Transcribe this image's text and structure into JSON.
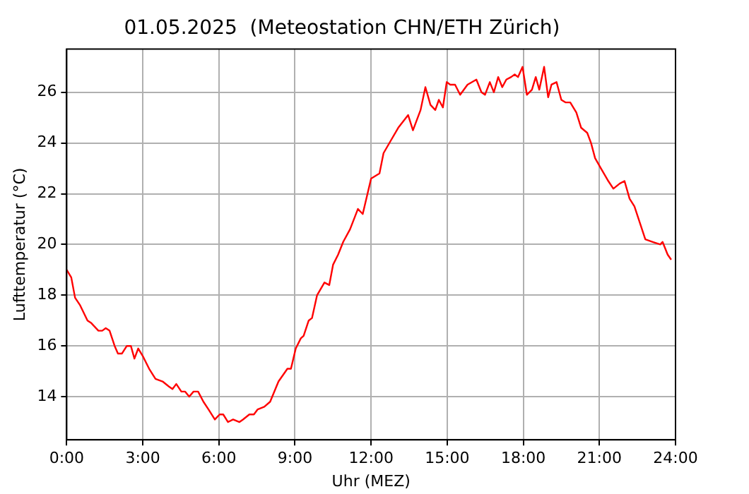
{
  "chart_data": {
    "type": "line",
    "title": "01.05.2025  (Meteostation CHN/ETH Zürich)",
    "xlabel": "Uhr (MEZ)",
    "ylabel": "Lufttemperatur (°C)",
    "x": [
      0.0,
      0.18,
      0.33,
      0.53,
      0.82,
      0.97,
      1.25,
      1.4,
      1.54,
      1.69,
      1.89,
      2.02,
      2.18,
      2.37,
      2.53,
      2.67,
      2.82,
      3.0,
      3.25,
      3.5,
      3.78,
      4.03,
      4.17,
      4.32,
      4.52,
      4.67,
      4.83,
      5.0,
      5.18,
      5.39,
      5.59,
      5.84,
      6.03,
      6.17,
      6.36,
      6.56,
      6.81,
      6.95,
      7.2,
      7.38,
      7.53,
      7.79,
      8.02,
      8.35,
      8.56,
      8.7,
      8.84,
      9.03,
      9.23,
      9.34,
      9.54,
      9.67,
      9.87,
      10.16,
      10.35,
      10.5,
      10.7,
      10.9,
      11.17,
      11.48,
      11.67,
      12.0,
      12.33,
      12.49,
      12.78,
      13.07,
      13.46,
      13.65,
      13.95,
      14.14,
      14.34,
      14.53,
      14.67,
      14.83,
      14.98,
      15.12,
      15.31,
      15.51,
      15.8,
      16.15,
      16.35,
      16.49,
      16.68,
      16.84,
      17.01,
      17.17,
      17.33,
      17.52,
      17.66,
      17.79,
      17.97,
      18.14,
      18.34,
      18.49,
      18.63,
      18.82,
      18.98,
      19.11,
      19.31,
      19.5,
      19.66,
      19.85,
      20.09,
      20.28,
      20.52,
      20.67,
      20.83,
      21.06,
      21.35,
      21.55,
      21.8,
      21.99,
      22.19,
      22.38,
      22.58,
      22.81,
      23.1,
      23.4,
      23.49,
      23.69,
      23.83
    ],
    "series": [
      {
        "color": "#ff0000",
        "values": [
          19.0,
          18.7,
          17.9,
          17.6,
          17.0,
          16.9,
          16.6,
          16.6,
          16.7,
          16.6,
          16.0,
          15.7,
          15.7,
          16.0,
          16.0,
          15.5,
          15.9,
          15.6,
          15.1,
          14.7,
          14.6,
          14.4,
          14.3,
          14.5,
          14.2,
          14.2,
          14.0,
          14.2,
          14.2,
          13.8,
          13.5,
          13.1,
          13.3,
          13.3,
          13.0,
          13.1,
          13.0,
          13.1,
          13.3,
          13.3,
          13.5,
          13.6,
          13.8,
          14.6,
          14.9,
          15.1,
          15.1,
          15.9,
          16.3,
          16.4,
          17.0,
          17.1,
          18.0,
          18.5,
          18.4,
          19.2,
          19.6,
          20.1,
          20.6,
          21.4,
          21.2,
          22.6,
          22.8,
          23.6,
          24.1,
          24.6,
          25.1,
          24.5,
          25.3,
          26.2,
          25.5,
          25.3,
          25.7,
          25.4,
          26.4,
          26.3,
          26.3,
          25.9,
          26.3,
          26.5,
          26.0,
          25.9,
          26.4,
          26.0,
          26.6,
          26.2,
          26.5,
          26.6,
          26.7,
          26.6,
          27.0,
          25.9,
          26.1,
          26.6,
          26.1,
          27.0,
          25.8,
          26.3,
          26.4,
          25.7,
          25.6,
          25.6,
          25.2,
          24.6,
          24.4,
          24.0,
          23.4,
          23.0,
          22.5,
          22.2,
          22.4,
          22.5,
          21.8,
          21.5,
          20.9,
          20.2,
          20.1,
          20.0,
          20.1,
          19.6,
          19.4
        ]
      }
    ],
    "xlim": [
      0,
      24
    ],
    "xticks": [
      {
        "value": 0,
        "label": "0:00"
      },
      {
        "value": 3,
        "label": "3:00"
      },
      {
        "value": 6,
        "label": "6:00"
      },
      {
        "value": 9,
        "label": "9:00"
      },
      {
        "value": 12,
        "label": "12:00"
      },
      {
        "value": 15,
        "label": "15:00"
      },
      {
        "value": 18,
        "label": "18:00"
      },
      {
        "value": 21,
        "label": "21:00"
      },
      {
        "value": 24,
        "label": "24:00"
      }
    ],
    "ylim": [
      12.3,
      27.7
    ],
    "yticks": [
      14,
      16,
      18,
      20,
      22,
      24,
      26
    ],
    "grid": true,
    "line_style": "solid",
    "marker": "none"
  }
}
